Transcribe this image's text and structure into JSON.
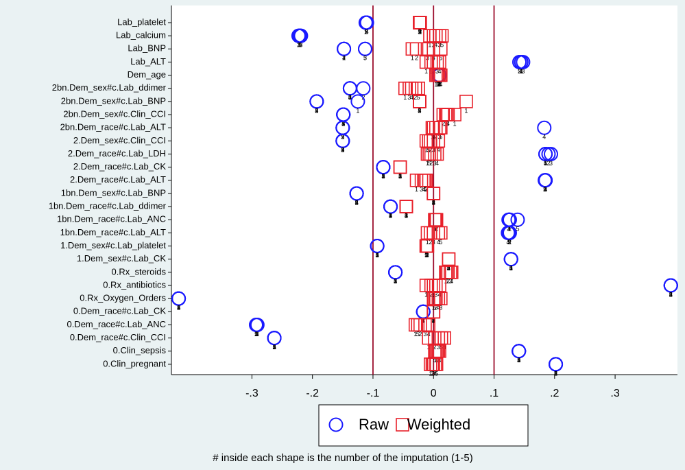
{
  "chart_data": {
    "type": "dot",
    "categories": [
      "Lab_platelet",
      "Lab_calcium",
      "Lab_BNP",
      "Lab_ALT",
      "Dem_age",
      "2bn.Dem_sex#c.Lab_ddimer",
      "2bn.Dem_sex#c.Lab_BNP",
      "2bn.Dem_sex#c.Clin_CCI",
      "2bn.Dem_race#c.Lab_ALT",
      "2.Dem_sex#c.Clin_CCI",
      "2.Dem_race#c.Lab_LDH",
      "2.Dem_race#c.Lab_CK",
      "2.Dem_race#c.Lab_ALT",
      "1bn.Dem_sex#c.Lab_BNP",
      "1bn.Dem_race#c.Lab_ddimer",
      "1bn.Dem_race#c.Lab_ANC",
      "1bn.Dem_race#c.Lab_ALT",
      "1.Dem_sex#c.Lab_platelet",
      "1.Dem_sex#c.Lab_CK",
      "0.Rx_steroids",
      "0.Rx_antibiotics",
      "0.Rx_Oxygen_Orders",
      "0.Dem_race#c.Lab_CK",
      "0.Dem_race#c.Lab_ANC",
      "0.Dem_race#c.Clin_CCI",
      "0.Clin_sepsis",
      "0.Clin_pregnant"
    ],
    "imputations": [
      1,
      2,
      3,
      4,
      5
    ],
    "series": [
      {
        "name": "Raw",
        "marker": "circle",
        "color": "#1a1aff",
        "values": [
          [
            -0.112,
            -0.111,
            -0.111,
            -0.11,
            -0.111
          ],
          [
            -0.222,
            -0.223,
            -0.219,
            -0.22,
            -0.221
          ],
          [
            -0.148,
            -0.148,
            -0.113,
            -0.148,
            -0.113
          ],
          [
            0.145,
            0.142,
            0.148,
            0.145,
            0.142
          ],
          [
            0.009,
            0.009,
            0.01,
            0.009,
            0.009
          ],
          [
            -0.138,
            -0.116,
            -0.138,
            -0.138,
            -0.138
          ],
          [
            -0.125,
            -0.193,
            -0.193,
            -0.193,
            -0.193
          ],
          [
            -0.149,
            -0.149,
            -0.149,
            -0.149,
            -0.149
          ],
          [
            -0.15,
            -0.15,
            -0.15,
            0.183,
            -0.15
          ],
          [
            -0.15,
            -0.15,
            -0.15,
            -0.15,
            -0.15
          ],
          [
            0.185,
            0.19,
            0.194,
            0.185,
            0.185
          ],
          [
            -0.083,
            -0.083,
            -0.083,
            -0.083,
            -0.083
          ],
          [
            0.185,
            0.184,
            0.185,
            0.185,
            0.184
          ],
          [
            -0.127,
            -0.127,
            -0.127,
            -0.127,
            -0.127
          ],
          [
            -0.071,
            -0.071,
            -0.071,
            -0.071,
            -0.071
          ],
          [
            0.125,
            0.126,
            0.124,
            0.125,
            0.139
          ],
          [
            0.124,
            0.126,
            0.125,
            0.123,
            0.125
          ],
          [
            -0.093,
            -0.093,
            -0.093,
            -0.093,
            -0.093
          ],
          [
            0.128,
            0.128,
            0.128,
            0.128,
            0.128
          ],
          [
            -0.063,
            -0.063,
            -0.063,
            -0.063,
            -0.063
          ],
          [
            0.392,
            0.392,
            0.392,
            0.392,
            0.392
          ],
          [
            -0.421,
            -0.421,
            -0.421,
            -0.421,
            -0.421
          ],
          [
            -0.017,
            -0.017,
            -0.017,
            -0.017,
            -0.017
          ],
          [
            -0.292,
            -0.293,
            -0.291,
            -0.292,
            -0.293
          ],
          [
            -0.263,
            -0.263,
            -0.263,
            -0.263,
            -0.263
          ],
          [
            0.141,
            0.141,
            0.141,
            0.141,
            0.141
          ],
          [
            0.202,
            0.202,
            0.202,
            0.202,
            0.202
          ]
        ]
      },
      {
        "name": "Weighted",
        "marker": "square",
        "color": "#e8202a",
        "values": [
          [
            -0.023,
            -0.022,
            -0.023,
            -0.022,
            -0.023
          ],
          [
            -0.006,
            0.0,
            0.01,
            0.004,
            0.014
          ],
          [
            -0.035,
            -0.028,
            -0.01,
            0.0,
            0.012
          ],
          [
            -0.012,
            0.0,
            0.006,
            0.01,
            -0.004
          ],
          [
            0.004,
            0.008,
            0.01,
            0.012,
            0.006
          ],
          [
            -0.047,
            -0.03,
            -0.04,
            -0.036,
            -0.025
          ],
          [
            0.054,
            -0.023,
            -0.023,
            -0.023,
            -0.023
          ],
          [
            0.035,
            0.016,
            0.02,
            0.024,
            0.022
          ],
          [
            -0.002,
            0.004,
            0.01,
            0.0,
            0.012
          ],
          [
            -0.012,
            -0.005,
            0.0,
            0.008,
            -0.008
          ],
          [
            -0.01,
            -0.004,
            0.002,
            0.006,
            -0.007
          ],
          [
            -0.055,
            -0.055,
            -0.055,
            -0.055,
            -0.055
          ],
          [
            -0.028,
            -0.012,
            -0.02,
            -0.016,
            -0.014
          ],
          [
            0.0,
            0.0,
            0.0,
            0.0,
            0.0
          ],
          [
            -0.045,
            -0.045,
            -0.045,
            -0.045,
            -0.045
          ],
          [
            0.003,
            0.005,
            0.004,
            0.002,
            0.003
          ],
          [
            -0.01,
            -0.005,
            0.0,
            0.008,
            0.012
          ],
          [
            -0.012,
            -0.011,
            -0.01,
            -0.011,
            -0.012
          ],
          [
            0.025,
            0.025,
            0.025,
            0.025,
            0.025
          ],
          [
            0.02,
            0.024,
            0.028,
            0.03,
            0.022
          ],
          [
            -0.012,
            -0.004,
            0.004,
            0.01,
            0.0
          ],
          [
            0.0,
            0.004,
            0.012,
            0.008,
            0.002
          ],
          [
            0.0,
            0.0,
            0.0,
            0.0,
            0.0
          ],
          [
            -0.03,
            -0.022,
            -0.014,
            -0.008,
            -0.026
          ],
          [
            -0.008,
            0.002,
            0.008,
            0.018,
            0.013
          ],
          [
            0.004,
            0.006,
            0.008,
            0.01,
            0.002
          ],
          [
            -0.005,
            -0.002,
            0.0,
            0.003,
            0.005
          ]
        ]
      }
    ],
    "xlim": [
      -0.433,
      0.403
    ],
    "xticks": [
      {
        "value": -0.3,
        "label": "-.3"
      },
      {
        "value": -0.2,
        "label": "-.2"
      },
      {
        "value": -0.1,
        "label": "-.1"
      },
      0,
      {
        "value": 0.1,
        "label": ".1"
      },
      {
        "value": 0.2,
        "label": ".2"
      },
      {
        "value": 0.3,
        "label": ".3"
      }
    ],
    "reflines": [
      -0.1,
      0,
      0.1
    ],
    "refline_color": "#9b0d2c",
    "legend": "bottom",
    "note": "# inside each shape is the number of the imputation (1-5)"
  }
}
